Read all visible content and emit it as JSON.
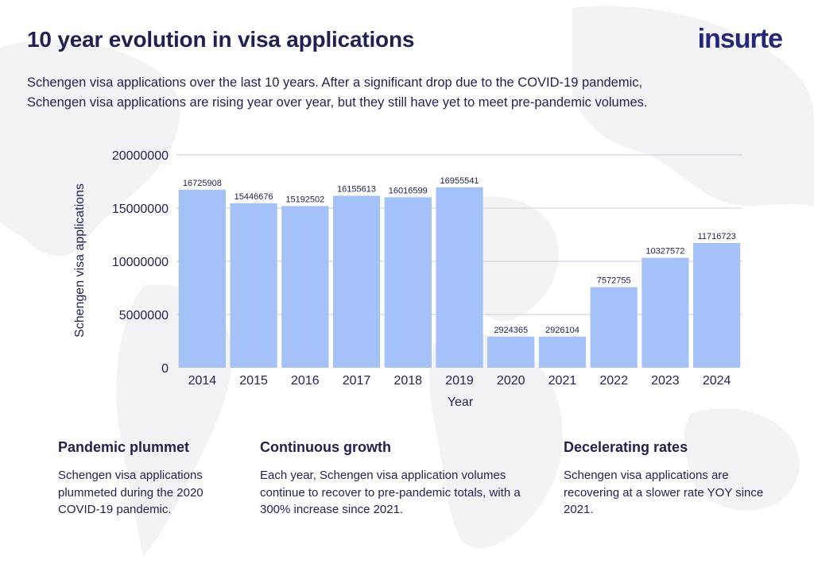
{
  "header": {
    "title": "10 year evolution in visa applications",
    "logo_text": "insurte",
    "subtitle": "Schengen visa applications over the last 10 years. After a significant drop due to the COVID-19 pandemic, Schengen visa applications are rising year over year, but they still have yet to meet pre-pandemic volumes."
  },
  "colors": {
    "bar": "#a4c2f7",
    "text": "#1f2150",
    "brand": "#25277a",
    "gridline": "#c9cbe0",
    "map": "#f3f3f6"
  },
  "chart_data": {
    "type": "bar",
    "categories": [
      "2014",
      "2015",
      "2016",
      "2017",
      "2018",
      "2019",
      "2020",
      "2021",
      "2022",
      "2023",
      "2024"
    ],
    "values": [
      16725908,
      15446676,
      15192502,
      16155613,
      16016599,
      16955541,
      2924365,
      2926104,
      7572755,
      10327572,
      11716723
    ],
    "data_labels": [
      "16725908",
      "15446676",
      "15192502",
      "16155613",
      "16016599",
      "16955541",
      "2924365",
      "2926104",
      "7572755",
      "10327572",
      "11716723"
    ],
    "xlabel": "Year",
    "ylabel": "Schengen visa applications",
    "ylim": [
      0,
      20000000
    ],
    "yticks": [
      0,
      5000000,
      10000000,
      15000000,
      20000000
    ],
    "ytick_labels": [
      "0",
      "5000000",
      "10000000",
      "15000000",
      "20000000"
    ],
    "grid": true,
    "legend": "none"
  },
  "cards": [
    {
      "title": "Pandemic plummet",
      "text": "Schengen visa applications plummeted during the 2020 COVID-19 pandemic."
    },
    {
      "title": "Continuous growth",
      "text": "Each year, Schengen visa application volumes continue to recover to pre-pandemic totals, with a 300% increase since 2021."
    },
    {
      "title": "Decelerating rates",
      "text": "Schengen visa applications are recovering at a slower rate YOY since 2021."
    }
  ]
}
